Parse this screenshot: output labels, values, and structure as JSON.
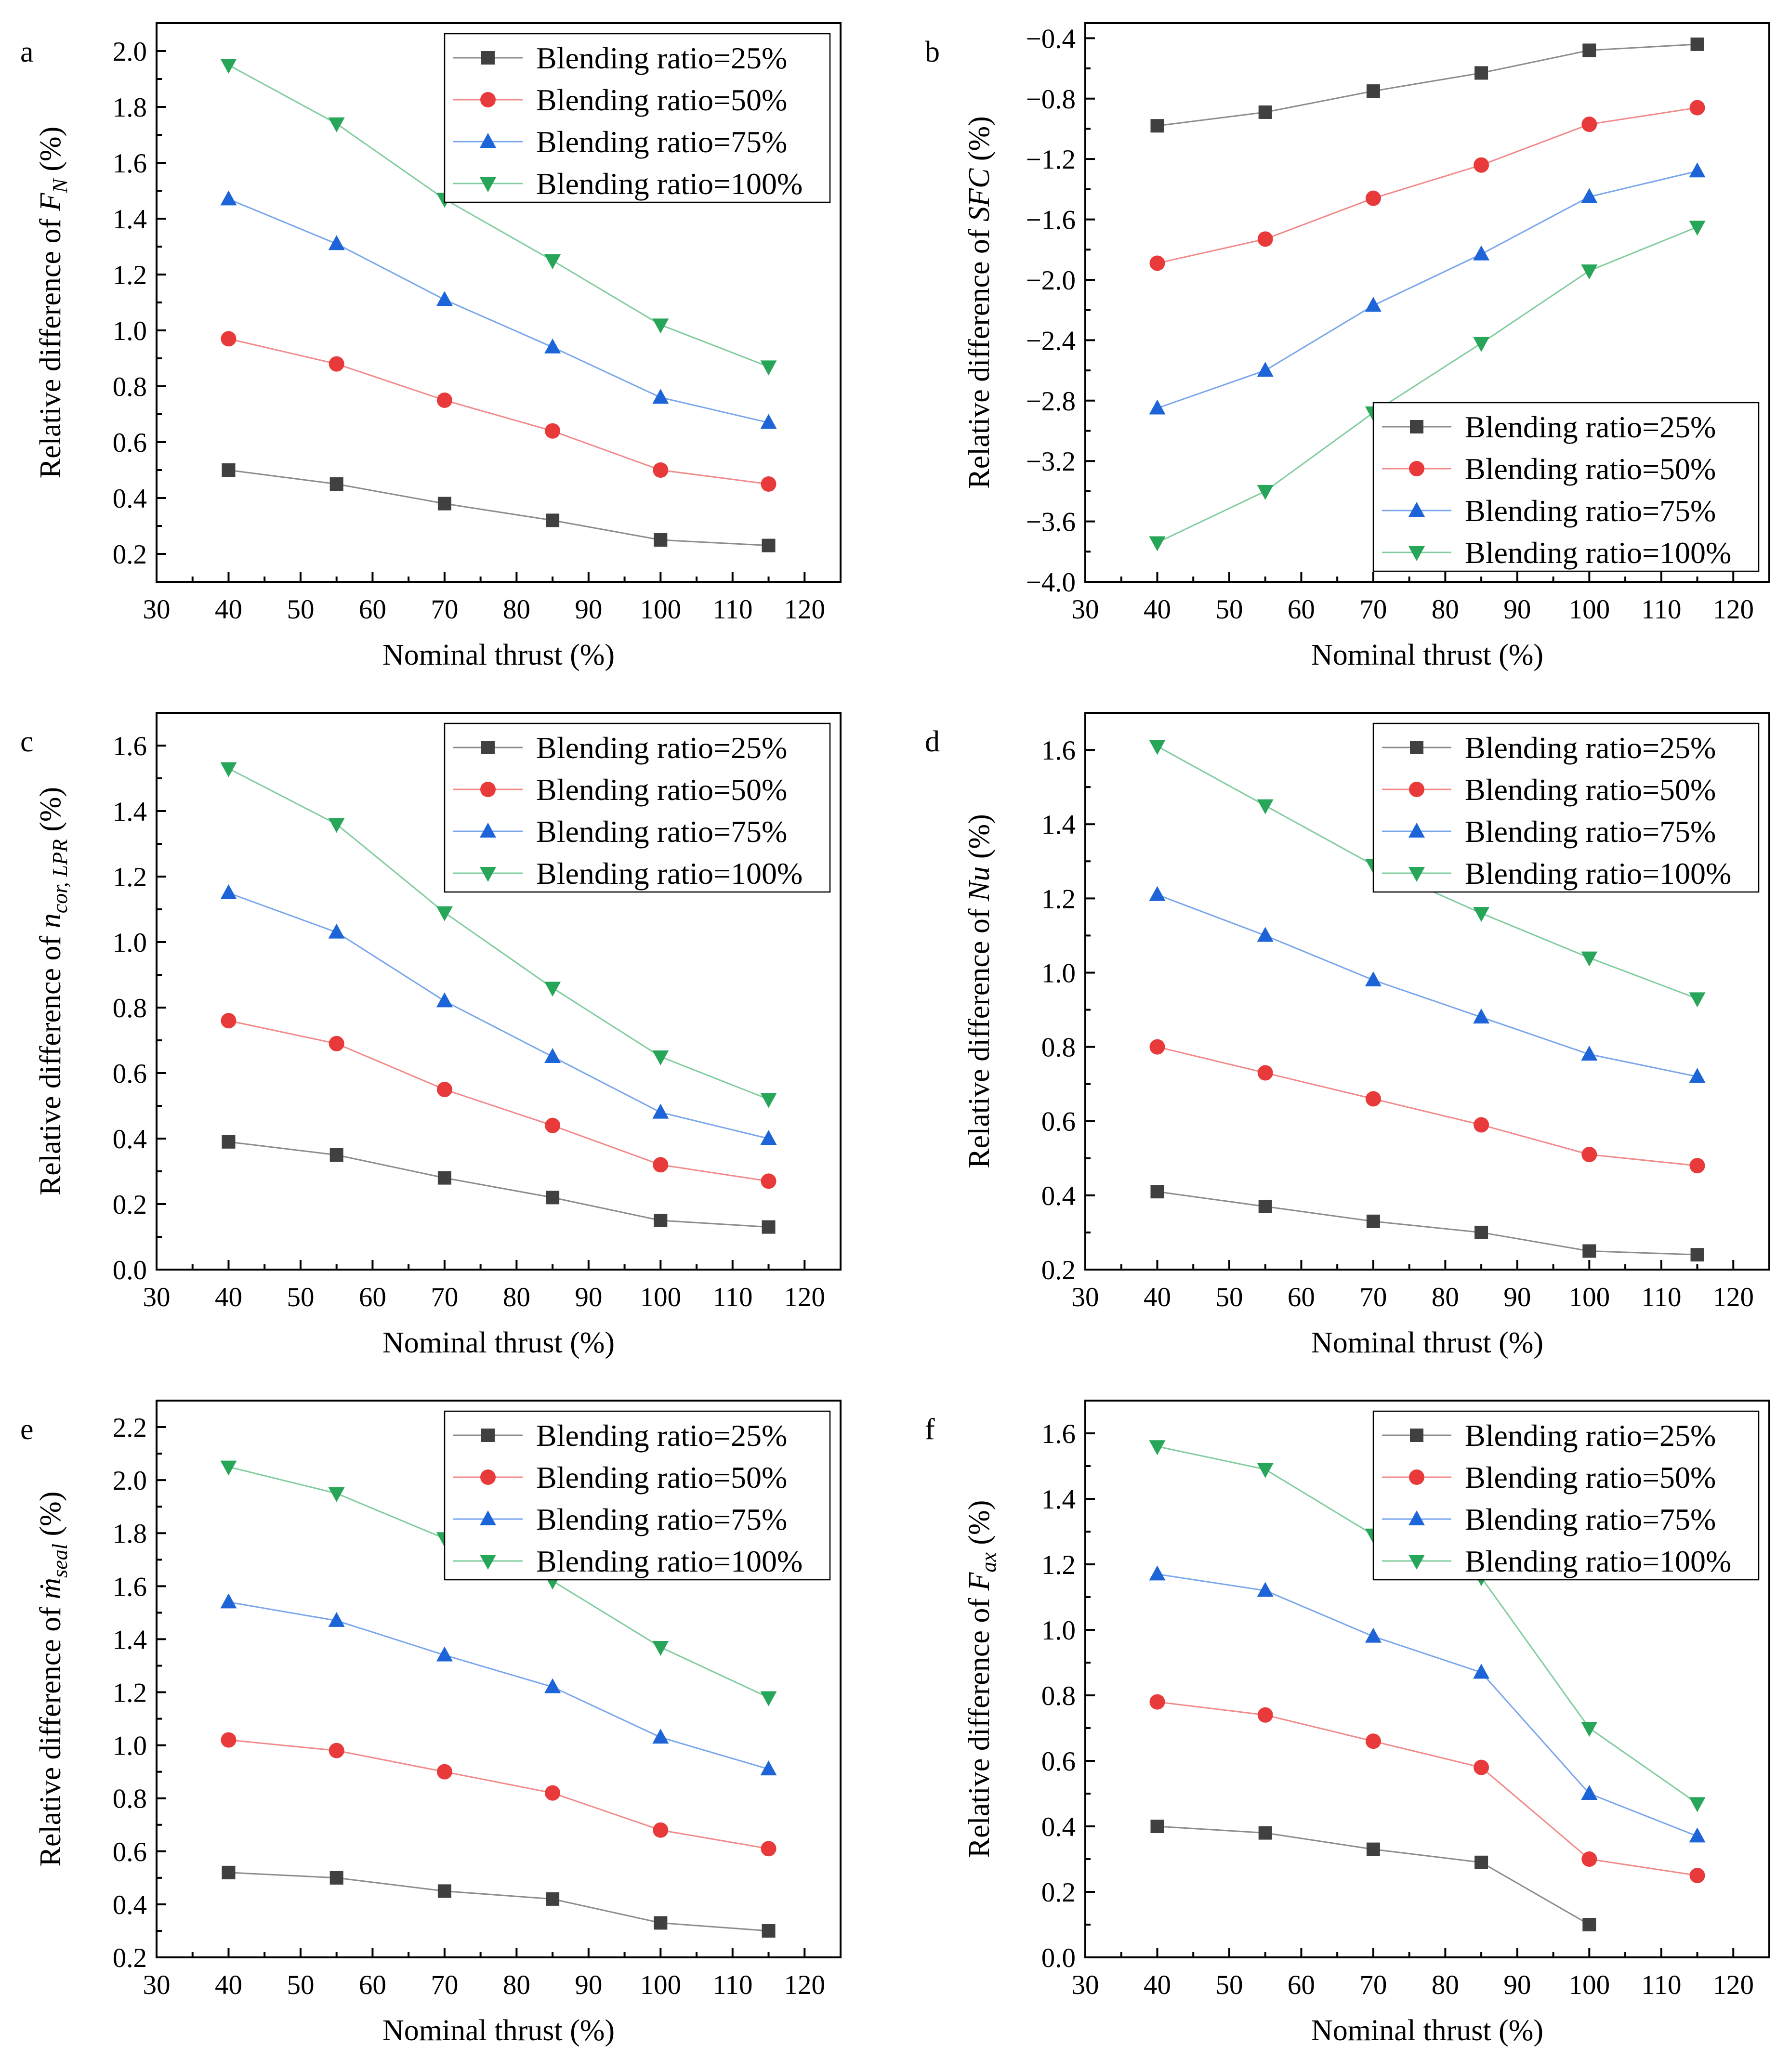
{
  "series_style": [
    {
      "name": "Blending ratio=25%",
      "color": "#404040",
      "line_color": "#8c8c8c",
      "marker": "square"
    },
    {
      "name": "Blending ratio=50%",
      "color": "#e83a3a",
      "line_color": "#f28a8a",
      "marker": "circle"
    },
    {
      "name": "Blending ratio=75%",
      "color": "#1c64d8",
      "line_color": "#7aa6ec",
      "marker": "triangle-up"
    },
    {
      "name": "Blending ratio=100%",
      "color": "#27a65a",
      "line_color": "#82cc9f",
      "marker": "triangle-down"
    }
  ],
  "chart_data": [
    {
      "panel": "a",
      "type": "line",
      "xlabel": "Nominal thrust (%)",
      "ylabel": {
        "prefix": "Relative difference of ",
        "var": "F",
        "sub": "N",
        "suffix": " (%)"
      },
      "xlim": [
        30,
        125
      ],
      "xticks": [
        30,
        40,
        50,
        60,
        70,
        80,
        90,
        100,
        110,
        120
      ],
      "xtick_labels": [
        "30",
        "40",
        "50",
        "60",
        "70",
        "80",
        "90",
        "100",
        "110",
        "120"
      ],
      "ylim": [
        0.1,
        2.1
      ],
      "yticks": [
        0.2,
        0.4,
        0.6,
        0.8,
        1.0,
        1.2,
        1.4,
        1.6,
        1.8,
        2.0
      ],
      "ytick_labels": [
        "0.2",
        "0.4",
        "0.6",
        "0.8",
        "1.0",
        "1.2",
        "1.4",
        "1.6",
        "1.8",
        "2.0"
      ],
      "legend_position": "top-right",
      "x": [
        40,
        55,
        70,
        85,
        100,
        115
      ],
      "series": [
        {
          "name": "Blending ratio=25%",
          "values": [
            0.5,
            0.45,
            0.38,
            0.32,
            0.25,
            0.23
          ]
        },
        {
          "name": "Blending ratio=50%",
          "values": [
            0.97,
            0.88,
            0.75,
            0.64,
            0.5,
            0.45
          ]
        },
        {
          "name": "Blending ratio=75%",
          "values": [
            1.47,
            1.31,
            1.11,
            0.94,
            0.76,
            0.67
          ]
        },
        {
          "name": "Blending ratio=100%",
          "values": [
            1.95,
            1.74,
            1.47,
            1.25,
            1.02,
            0.87
          ]
        }
      ]
    },
    {
      "panel": "b",
      "type": "line",
      "xlabel": "Nominal thrust (%)",
      "ylabel": {
        "prefix": "Relative difference of ",
        "var": "SFC",
        "sub": "",
        "suffix": " (%)"
      },
      "xlim": [
        30,
        125
      ],
      "xticks": [
        30,
        40,
        50,
        60,
        70,
        80,
        90,
        100,
        110,
        120
      ],
      "xtick_labels": [
        "30",
        "40",
        "50",
        "60",
        "70",
        "80",
        "90",
        "100",
        "110",
        "120"
      ],
      "ylim": [
        -4.0,
        -0.3
      ],
      "yticks": [
        -4.0,
        -3.6,
        -3.2,
        -2.8,
        -2.4,
        -2.0,
        -1.6,
        -1.2,
        -0.8,
        -0.4
      ],
      "ytick_labels": [
        "−4.0",
        "−3.6",
        "−3.2",
        "−2.8",
        "−2.4",
        "−2.0",
        "−1.6",
        "−1.2",
        "−0.8",
        "−0.4"
      ],
      "legend_position": "bottom-right",
      "x": [
        40,
        55,
        70,
        85,
        100,
        115
      ],
      "series": [
        {
          "name": "Blending ratio=25%",
          "values": [
            -0.98,
            -0.89,
            -0.75,
            -0.63,
            -0.48,
            -0.44
          ]
        },
        {
          "name": "Blending ratio=50%",
          "values": [
            -1.89,
            -1.73,
            -1.46,
            -1.24,
            -0.97,
            -0.86
          ]
        },
        {
          "name": "Blending ratio=75%",
          "values": [
            -2.85,
            -2.6,
            -2.17,
            -1.83,
            -1.45,
            -1.28
          ]
        },
        {
          "name": "Blending ratio=100%",
          "values": [
            -3.74,
            -3.4,
            -2.88,
            -2.42,
            -1.94,
            -1.65
          ]
        }
      ]
    },
    {
      "panel": "c",
      "type": "line",
      "xlabel": "Nominal thrust (%)",
      "ylabel": {
        "prefix": "Relative difference of ",
        "var": "n",
        "sub": "cor, LPR",
        "suffix": " (%)"
      },
      "xlim": [
        30,
        125
      ],
      "xticks": [
        30,
        40,
        50,
        60,
        70,
        80,
        90,
        100,
        110,
        120
      ],
      "xtick_labels": [
        "30",
        "40",
        "50",
        "60",
        "70",
        "80",
        "90",
        "100",
        "110",
        "120"
      ],
      "ylim": [
        0.0,
        1.7
      ],
      "yticks": [
        0.0,
        0.2,
        0.4,
        0.6,
        0.8,
        1.0,
        1.2,
        1.4,
        1.6
      ],
      "ytick_labels": [
        "0.0",
        "0.2",
        "0.4",
        "0.6",
        "0.8",
        "1.0",
        "1.2",
        "1.4",
        "1.6"
      ],
      "legend_position": "top-right",
      "x": [
        40,
        55,
        70,
        85,
        100,
        115
      ],
      "series": [
        {
          "name": "Blending ratio=25%",
          "values": [
            0.39,
            0.35,
            0.28,
            0.22,
            0.15,
            0.13
          ]
        },
        {
          "name": "Blending ratio=50%",
          "values": [
            0.76,
            0.69,
            0.55,
            0.44,
            0.32,
            0.27
          ]
        },
        {
          "name": "Blending ratio=75%",
          "values": [
            1.15,
            1.03,
            0.82,
            0.65,
            0.48,
            0.4
          ]
        },
        {
          "name": "Blending ratio=100%",
          "values": [
            1.53,
            1.36,
            1.09,
            0.86,
            0.65,
            0.52
          ]
        }
      ]
    },
    {
      "panel": "d",
      "type": "line",
      "xlabel": "Nominal thrust (%)",
      "ylabel": {
        "prefix": "Relative difference of ",
        "var": "Nu",
        "sub": "",
        "suffix": " (%)"
      },
      "xlim": [
        30,
        125
      ],
      "xticks": [
        30,
        40,
        50,
        60,
        70,
        80,
        90,
        100,
        110,
        120
      ],
      "xtick_labels": [
        "30",
        "40",
        "50",
        "60",
        "70",
        "80",
        "90",
        "100",
        "110",
        "120"
      ],
      "ylim": [
        0.2,
        1.7
      ],
      "yticks": [
        0.2,
        0.4,
        0.6,
        0.8,
        1.0,
        1.2,
        1.4,
        1.6
      ],
      "ytick_labels": [
        "0.2",
        "0.4",
        "0.6",
        "0.8",
        "1.0",
        "1.2",
        "1.4",
        "1.6"
      ],
      "legend_position": "top-right",
      "x": [
        40,
        55,
        70,
        85,
        100,
        115
      ],
      "series": [
        {
          "name": "Blending ratio=25%",
          "values": [
            0.41,
            0.37,
            0.33,
            0.3,
            0.25,
            0.24
          ]
        },
        {
          "name": "Blending ratio=50%",
          "values": [
            0.8,
            0.73,
            0.66,
            0.59,
            0.51,
            0.48
          ]
        },
        {
          "name": "Blending ratio=75%",
          "values": [
            1.21,
            1.1,
            0.98,
            0.88,
            0.78,
            0.72
          ]
        },
        {
          "name": "Blending ratio=100%",
          "values": [
            1.61,
            1.45,
            1.29,
            1.16,
            1.04,
            0.93
          ]
        }
      ]
    },
    {
      "panel": "e",
      "type": "line",
      "xlabel": "Nominal thrust (%)",
      "ylabel": {
        "prefix": "Relative difference of ",
        "var": "ṁ",
        "sub": "seal",
        "suffix": " (%)"
      },
      "xlim": [
        30,
        125
      ],
      "xticks": [
        30,
        40,
        50,
        60,
        70,
        80,
        90,
        100,
        110,
        120
      ],
      "xtick_labels": [
        "30",
        "40",
        "50",
        "60",
        "70",
        "80",
        "90",
        "100",
        "110",
        "120"
      ],
      "ylim": [
        0.2,
        2.3
      ],
      "yticks": [
        0.2,
        0.4,
        0.6,
        0.8,
        1.0,
        1.2,
        1.4,
        1.6,
        1.8,
        2.0,
        2.2
      ],
      "ytick_labels": [
        "0.2",
        "0.4",
        "0.6",
        "0.8",
        "1.0",
        "1.2",
        "1.4",
        "1.6",
        "1.8",
        "2.0",
        "2.2"
      ],
      "legend_position": "top-right",
      "x": [
        40,
        55,
        70,
        85,
        100,
        115
      ],
      "series": [
        {
          "name": "Blending ratio=25%",
          "values": [
            0.52,
            0.5,
            0.45,
            0.42,
            0.33,
            0.3
          ]
        },
        {
          "name": "Blending ratio=50%",
          "values": [
            1.02,
            0.98,
            0.9,
            0.82,
            0.68,
            0.61
          ]
        },
        {
          "name": "Blending ratio=75%",
          "values": [
            1.54,
            1.47,
            1.34,
            1.22,
            1.03,
            0.91
          ]
        },
        {
          "name": "Blending ratio=100%",
          "values": [
            2.05,
            1.95,
            1.78,
            1.62,
            1.37,
            1.18
          ]
        }
      ]
    },
    {
      "panel": "f",
      "type": "line",
      "xlabel": "Nominal thrust (%)",
      "ylabel": {
        "prefix": "Relative difference of ",
        "var": "F",
        "sub": "ax",
        "suffix": " (%)"
      },
      "xlim": [
        30,
        125
      ],
      "xticks": [
        30,
        40,
        50,
        60,
        70,
        80,
        90,
        100,
        110,
        120
      ],
      "xtick_labels": [
        "30",
        "40",
        "50",
        "60",
        "70",
        "80",
        "90",
        "100",
        "110",
        "120"
      ],
      "ylim": [
        0.0,
        1.7
      ],
      "yticks": [
        0.0,
        0.2,
        0.4,
        0.6,
        0.8,
        1.0,
        1.2,
        1.4,
        1.6
      ],
      "ytick_labels": [
        "0.0",
        "0.2",
        "0.4",
        "0.6",
        "0.8",
        "1.0",
        "1.2",
        "1.4",
        "1.6"
      ],
      "legend_position": "top-right",
      "x": [
        40,
        55,
        70,
        85,
        100,
        115
      ],
      "series": [
        {
          "name": "Blending ratio=25%",
          "x": [
            40,
            55,
            70,
            85,
            100
          ],
          "values": [
            0.4,
            0.38,
            0.33,
            0.29,
            0.1
          ]
        },
        {
          "name": "Blending ratio=50%",
          "values": [
            0.78,
            0.74,
            0.66,
            0.58,
            0.3,
            0.25
          ]
        },
        {
          "name": "Blending ratio=75%",
          "values": [
            1.17,
            1.12,
            0.98,
            0.87,
            0.5,
            0.37
          ]
        },
        {
          "name": "Blending ratio=100%",
          "values": [
            1.56,
            1.49,
            1.29,
            1.16,
            0.7,
            0.47
          ]
        }
      ]
    }
  ]
}
